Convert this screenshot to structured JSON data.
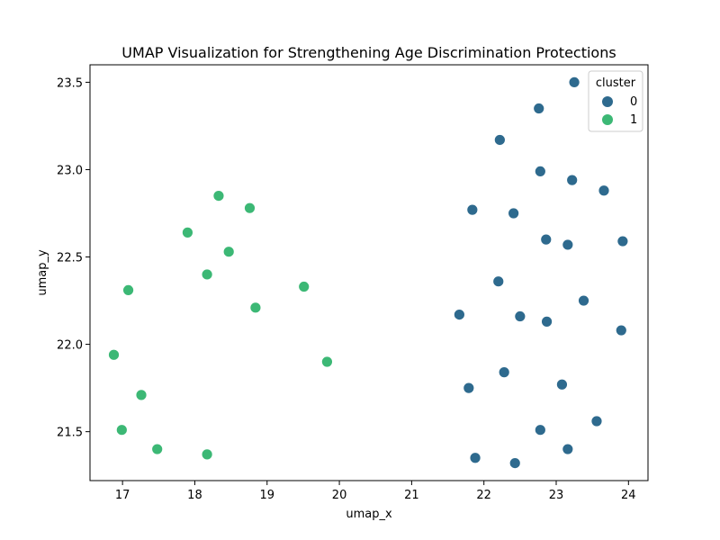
{
  "chart_data": {
    "type": "scatter",
    "title": "UMAP Visualization for Strengthening Age Discrimination Protections",
    "xlabel": "umap_x",
    "ylabel": "umap_y",
    "xlim": [
      16.55,
      24.27
    ],
    "ylim": [
      21.22,
      23.6
    ],
    "xticks": [
      17,
      18,
      19,
      20,
      21,
      22,
      23,
      24
    ],
    "yticks": [
      21.5,
      22.0,
      22.5,
      23.0,
      23.5
    ],
    "xtick_labels": [
      "17",
      "18",
      "19",
      "20",
      "21",
      "22",
      "23",
      "24"
    ],
    "ytick_labels": [
      "21.5",
      "22.0",
      "22.5",
      "23.0",
      "23.5"
    ],
    "grid": false,
    "legend": {
      "title": "cluster",
      "placement": "top-right"
    },
    "series": [
      {
        "name": "0",
        "color": "#2e6a8e",
        "points": [
          [
            23.25,
            23.5
          ],
          [
            22.76,
            23.35
          ],
          [
            22.22,
            23.17
          ],
          [
            22.78,
            22.99
          ],
          [
            23.22,
            22.94
          ],
          [
            23.66,
            22.88
          ],
          [
            21.84,
            22.77
          ],
          [
            22.41,
            22.75
          ],
          [
            22.86,
            22.6
          ],
          [
            23.16,
            22.57
          ],
          [
            23.92,
            22.59
          ],
          [
            22.2,
            22.36
          ],
          [
            23.38,
            22.25
          ],
          [
            21.66,
            22.17
          ],
          [
            22.5,
            22.16
          ],
          [
            22.87,
            22.13
          ],
          [
            23.9,
            22.08
          ],
          [
            22.28,
            21.84
          ],
          [
            23.08,
            21.77
          ],
          [
            21.79,
            21.75
          ],
          [
            23.56,
            21.56
          ],
          [
            22.78,
            21.51
          ],
          [
            23.16,
            21.4
          ],
          [
            21.88,
            21.35
          ],
          [
            22.43,
            21.32
          ]
        ]
      },
      {
        "name": "1",
        "color": "#3cb875",
        "points": [
          [
            18.33,
            22.85
          ],
          [
            18.76,
            22.78
          ],
          [
            17.9,
            22.64
          ],
          [
            18.47,
            22.53
          ],
          [
            18.17,
            22.4
          ],
          [
            17.08,
            22.31
          ],
          [
            19.51,
            22.33
          ],
          [
            18.84,
            22.21
          ],
          [
            16.88,
            21.94
          ],
          [
            19.83,
            21.9
          ],
          [
            17.26,
            21.71
          ],
          [
            16.99,
            21.51
          ],
          [
            17.48,
            21.4
          ],
          [
            18.17,
            21.37
          ]
        ]
      }
    ]
  },
  "legend_items": [
    {
      "label": "0",
      "color": "#2e6a8e"
    },
    {
      "label": "1",
      "color": "#3cb875"
    }
  ]
}
